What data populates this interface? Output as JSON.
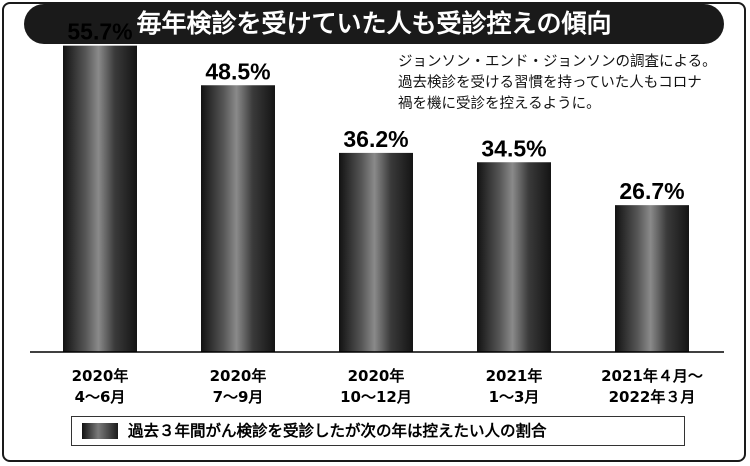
{
  "chart_data": {
    "type": "bar",
    "title": "毎年検診を受けていた人も受診控えの傾向",
    "note_lines": [
      "ジョンソン・エンド・ジョンソンの調査による。",
      "過去検診を受ける習慣を持っていた人もコロナ",
      "禍を機に受診を控えるように。"
    ],
    "categories": [
      [
        "2020年",
        "4〜6月"
      ],
      [
        "2020年",
        "7〜9月"
      ],
      [
        "2020年",
        "10〜12月"
      ],
      [
        "2021年",
        "1〜3月"
      ],
      [
        "2021年４月〜",
        "2022年３月"
      ]
    ],
    "values": [
      55.7,
      48.5,
      36.2,
      34.5,
      26.7
    ],
    "value_labels": [
      "55.7%",
      "48.5%",
      "36.2%",
      "34.5%",
      "26.7%"
    ],
    "ylim": [
      0,
      60
    ],
    "grid": false,
    "legend": {
      "label": "過去３年間がん検診を受診したが次の年は控えたい人の割合",
      "placement": "bottom"
    },
    "colors": {
      "bar_dark": "#121212",
      "bar_light": "#7a7a7a",
      "title_bg": "#1a1a1a"
    }
  }
}
